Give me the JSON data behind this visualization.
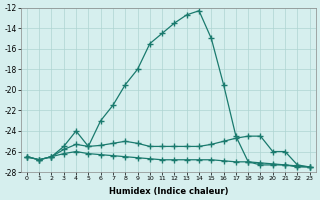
{
  "xlabel": "Humidex (Indice chaleur)",
  "x": [
    0,
    1,
    2,
    3,
    4,
    5,
    6,
    7,
    8,
    9,
    10,
    11,
    12,
    13,
    14,
    15,
    16,
    17,
    18,
    19,
    20,
    21,
    22,
    23
  ],
  "line_main": [
    -26.5,
    -26.8,
    -26.5,
    -25.5,
    -24.0,
    -25.5,
    -23.0,
    -21.5,
    -19.5,
    -18.0,
    -15.5,
    -14.5,
    -13.5,
    -12.7,
    -12.3,
    -15.0,
    -19.5,
    -24.5,
    -27.0,
    -27.3,
    -27.3,
    -27.3,
    -27.5,
    -27.5
  ],
  "line_mid": [
    -26.5,
    -26.8,
    -26.5,
    -25.8,
    -25.3,
    -25.5,
    -25.4,
    -25.2,
    -25.0,
    -25.2,
    -25.5,
    -25.5,
    -25.5,
    -25.5,
    -25.5,
    -25.3,
    -25.0,
    -24.7,
    -24.5,
    -24.5,
    -26.0,
    -26.0,
    -27.3,
    -27.5
  ],
  "line_bot": [
    -26.5,
    -26.8,
    -26.5,
    -26.2,
    -26.0,
    -26.2,
    -26.3,
    -26.4,
    -26.5,
    -26.6,
    -26.7,
    -26.8,
    -26.8,
    -26.8,
    -26.8,
    -26.8,
    -26.9,
    -27.0,
    -27.0,
    -27.1,
    -27.2,
    -27.3,
    -27.4,
    -27.5
  ],
  "ylim": [
    -28,
    -12
  ],
  "xlim": [
    -0.5,
    23.5
  ],
  "yticks": [
    -28,
    -26,
    -24,
    -22,
    -20,
    -18,
    -16,
    -14,
    -12
  ],
  "xticks": [
    0,
    1,
    2,
    3,
    4,
    5,
    6,
    7,
    8,
    9,
    10,
    11,
    12,
    13,
    14,
    15,
    16,
    17,
    18,
    19,
    20,
    21,
    22,
    23
  ],
  "line_color": "#1a7a6e",
  "bg_color": "#d6efee",
  "grid_color": "#aed4d2"
}
